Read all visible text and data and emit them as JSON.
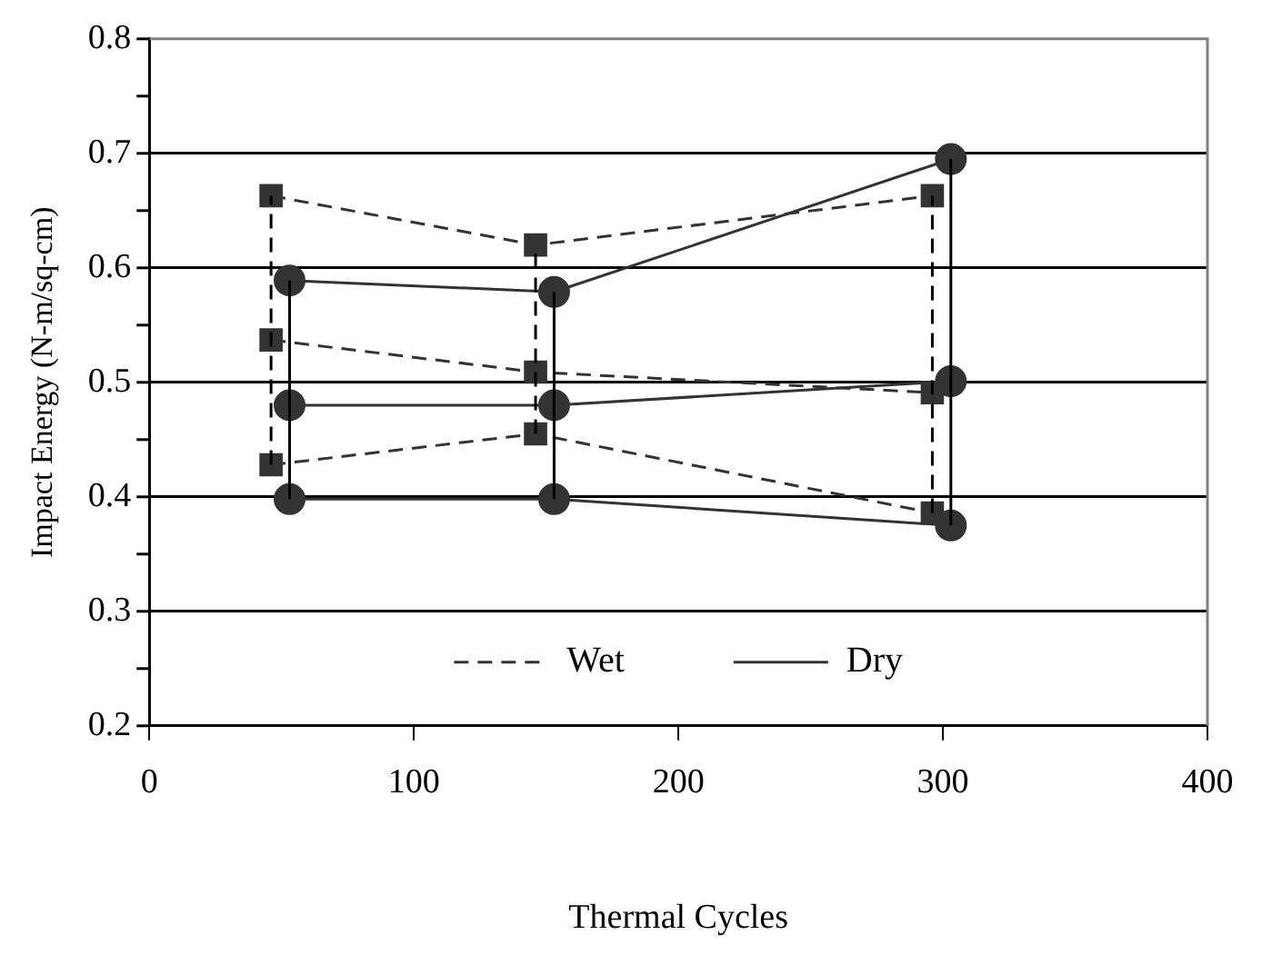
{
  "chart_data": {
    "type": "line",
    "xlabel": "Thermal Cycles",
    "ylabel": "Impact Energy (N-m/sq-cm)",
    "xlim": [
      0,
      400
    ],
    "xticks": [
      0,
      100,
      200,
      300,
      400
    ],
    "ylim": [
      0.2,
      0.8
    ],
    "yticks": [
      0.2,
      {
        "value": 0.25,
        "label": null
      },
      0.3,
      {
        "value": 0.35,
        "label": null
      },
      0.4,
      {
        "value": 0.45,
        "label": null
      },
      0.5,
      {
        "value": 0.55,
        "label": null
      },
      0.6,
      {
        "value": 0.65,
        "label": null
      },
      0.7,
      {
        "value": 0.75,
        "label": null
      },
      0.8
    ],
    "grid": "y",
    "legend": "bottom",
    "series": [
      {
        "x": [
          46,
          146,
          296
        ],
        "values": [
          0.663,
          0.62,
          0.663
        ],
        "color": "#333333",
        "line_style": "dashed",
        "marker": "square"
      },
      {
        "name": "Wet",
        "x": [
          46,
          146,
          296
        ],
        "values": [
          0.537,
          0.509,
          0.491
        ],
        "color": "#333333",
        "line_style": "dashed",
        "marker": "square"
      },
      {
        "x": [
          46,
          146,
          296
        ],
        "values": [
          0.428,
          0.455,
          0.386
        ],
        "color": "#333333",
        "line_style": "dashed",
        "marker": "square"
      },
      {
        "x": [
          53,
          153,
          303
        ],
        "values": [
          0.589,
          0.579,
          0.695
        ],
        "color": "#333333",
        "line_style": "solid",
        "marker": "circle"
      },
      {
        "name": "Dry",
        "x": [
          53,
          153,
          303
        ],
        "values": [
          0.48,
          0.48,
          0.501
        ],
        "color": "#333333",
        "line_style": "solid",
        "marker": "circle"
      },
      {
        "x": [
          53,
          153,
          303
        ],
        "values": [
          0.398,
          0.398,
          0.375
        ],
        "color": "#333333",
        "line_style": "solid",
        "marker": "circle"
      },
      {
        "x": [
          46,
          46
        ],
        "values": [
          0.428,
          0.663
        ],
        "color": "#000000",
        "line_style": "dashed",
        "marker": "none"
      },
      {
        "x": [
          146,
          146
        ],
        "values": [
          0.455,
          0.62
        ],
        "color": "#000000",
        "line_style": "dashed",
        "marker": "none"
      },
      {
        "x": [
          296,
          296
        ],
        "values": [
          0.386,
          0.663
        ],
        "color": "#000000",
        "line_style": "dashed",
        "marker": "none"
      },
      {
        "x": [
          53,
          53
        ],
        "values": [
          0.398,
          0.589
        ],
        "color": "#000000",
        "line_style": "solid",
        "marker": "none"
      },
      {
        "x": [
          153,
          153
        ],
        "values": [
          0.398,
          0.579
        ],
        "color": "#000000",
        "line_style": "solid",
        "marker": "none"
      },
      {
        "x": [
          303,
          303
        ],
        "values": [
          0.375,
          0.695
        ],
        "color": "#000000",
        "line_style": "solid",
        "marker": "none"
      }
    ]
  }
}
